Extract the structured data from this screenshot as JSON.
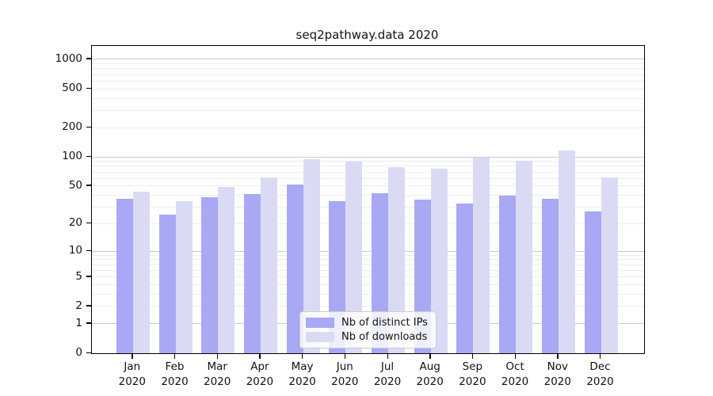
{
  "title": "seq2pathway.data 2020",
  "axes": {
    "y_tick_labels": [
      "0",
      "1",
      "2",
      "5",
      "10",
      "20",
      "50",
      "100",
      "200",
      "500",
      "1000"
    ],
    "x_tick_months": [
      "Jan",
      "Feb",
      "Mar",
      "Apr",
      "May",
      "Jun",
      "Jul",
      "Aug",
      "Sep",
      "Oct",
      "Nov",
      "Dec"
    ],
    "x_tick_year": "2020"
  },
  "legend": {
    "items": [
      {
        "label": "Nb of distinct IPs",
        "color": "#a8a8f4"
      },
      {
        "label": "Nb of downloads",
        "color": "#dadaf5"
      }
    ]
  },
  "colors": {
    "distinct_ips_bar": "#a8a8f4",
    "downloads_bar": "#dadaf5",
    "major_gridline": "#c9c9c9",
    "minor_gridline": "#ededed",
    "axis_spine": "#000000"
  },
  "chart_data": {
    "type": "bar",
    "title": "seq2pathway.data 2020",
    "categories": [
      "Jan 2020",
      "Feb 2020",
      "Mar 2020",
      "Apr 2020",
      "May 2020",
      "Jun 2020",
      "Jul 2020",
      "Aug 2020",
      "Sep 2020",
      "Oct 2020",
      "Nov 2020",
      "Dec 2020"
    ],
    "series": [
      {
        "name": "Nb of distinct IPs",
        "color": "#a8a8f4",
        "values": [
          37,
          25,
          38,
          41,
          52,
          35,
          42,
          36,
          33,
          40,
          37,
          27
        ]
      },
      {
        "name": "Nb of downloads",
        "color": "#dadaf5",
        "values": [
          44,
          35,
          49,
          62,
          95,
          90,
          79,
          76,
          99,
          92,
          117,
          61
        ]
      }
    ],
    "yscale": "log10(1+x)",
    "ylim": [
      0,
      1372
    ],
    "yticks": [
      0,
      1,
      2,
      5,
      10,
      20,
      50,
      100,
      200,
      500,
      1000
    ],
    "grid_major": [
      1,
      10,
      100,
      1000
    ],
    "grid_minor": [
      2,
      3,
      4,
      5,
      6,
      7,
      8,
      9,
      20,
      30,
      40,
      50,
      60,
      70,
      80,
      90,
      200,
      300,
      400,
      500,
      600,
      700,
      800,
      900
    ],
    "grid": true,
    "legend_position": "lower center",
    "xlabel": "",
    "ylabel": ""
  }
}
